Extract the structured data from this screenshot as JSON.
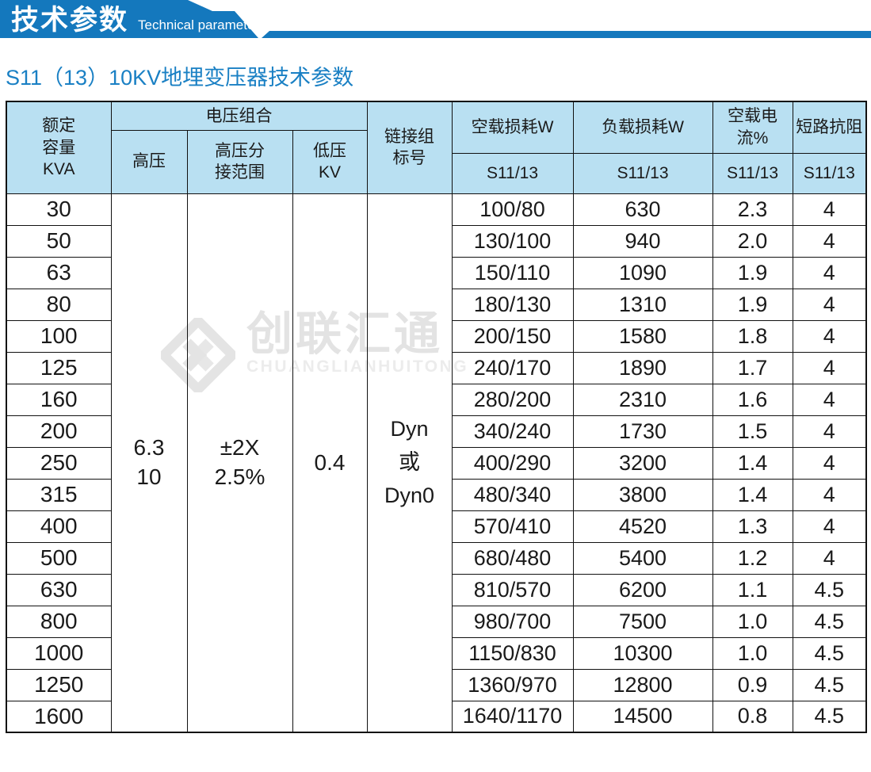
{
  "banner": {
    "title": "技术参数",
    "subtitle_en": "Technical parameter",
    "color": "#1478bd"
  },
  "page_title": "S11（13）10KV地埋变压器技术参数",
  "watermark": {
    "cn": "创联汇通",
    "en": "CHUANGLIANHUITONG",
    "color": "#e3e3e3"
  },
  "table": {
    "header": {
      "capacity": "额定\n容量\nKVA",
      "voltage_group": "电压组合",
      "hv": "高压",
      "hv_tap": "高压分\n接范围",
      "lv": "低压\nKV",
      "vector_group": "链接组\n标号",
      "no_load_loss": "空载损耗W",
      "load_loss": "负载损耗W",
      "no_load_current": "空载电流%",
      "impedance": "短路抗阻",
      "sub": "S11/13",
      "header_bg": "#b9e0f2"
    },
    "merged": {
      "hv": "6.3\n10",
      "hv_tap": "±2X\n2.5%",
      "lv": "0.4",
      "vector_group": "Dyn\n或\nDyn0"
    },
    "rows": [
      {
        "kva": "30",
        "no_load_loss": "100/80",
        "load_loss": "630",
        "no_load_current": "2.3",
        "impedance": "4"
      },
      {
        "kva": "50",
        "no_load_loss": "130/100",
        "load_loss": "940",
        "no_load_current": "2.0",
        "impedance": "4"
      },
      {
        "kva": "63",
        "no_load_loss": "150/110",
        "load_loss": "1090",
        "no_load_current": "1.9",
        "impedance": "4"
      },
      {
        "kva": "80",
        "no_load_loss": "180/130",
        "load_loss": "1310",
        "no_load_current": "1.9",
        "impedance": "4"
      },
      {
        "kva": "100",
        "no_load_loss": "200/150",
        "load_loss": "1580",
        "no_load_current": "1.8",
        "impedance": "4"
      },
      {
        "kva": "125",
        "no_load_loss": "240/170",
        "load_loss": "1890",
        "no_load_current": "1.7",
        "impedance": "4"
      },
      {
        "kva": "160",
        "no_load_loss": "280/200",
        "load_loss": "2310",
        "no_load_current": "1.6",
        "impedance": "4"
      },
      {
        "kva": "200",
        "no_load_loss": "340/240",
        "load_loss": "1730",
        "no_load_current": "1.5",
        "impedance": "4"
      },
      {
        "kva": "250",
        "no_load_loss": "400/290",
        "load_loss": "3200",
        "no_load_current": "1.4",
        "impedance": "4"
      },
      {
        "kva": "315",
        "no_load_loss": "480/340",
        "load_loss": "3800",
        "no_load_current": "1.4",
        "impedance": "4"
      },
      {
        "kva": "400",
        "no_load_loss": "570/410",
        "load_loss": "4520",
        "no_load_current": "1.3",
        "impedance": "4"
      },
      {
        "kva": "500",
        "no_load_loss": "680/480",
        "load_loss": "5400",
        "no_load_current": "1.2",
        "impedance": "4"
      },
      {
        "kva": "630",
        "no_load_loss": "810/570",
        "load_loss": "6200",
        "no_load_current": "1.1",
        "impedance": "4.5"
      },
      {
        "kva": "800",
        "no_load_loss": "980/700",
        "load_loss": "7500",
        "no_load_current": "1.0",
        "impedance": "4.5"
      },
      {
        "kva": "1000",
        "no_load_loss": "1150/830",
        "load_loss": "10300",
        "no_load_current": "1.0",
        "impedance": "4.5"
      },
      {
        "kva": "1250",
        "no_load_loss": "1360/970",
        "load_loss": "12800",
        "no_load_current": "0.9",
        "impedance": "4.5"
      },
      {
        "kva": "1600",
        "no_load_loss": "1640/1170",
        "load_loss": "14500",
        "no_load_current": "0.8",
        "impedance": "4.5"
      }
    ]
  }
}
